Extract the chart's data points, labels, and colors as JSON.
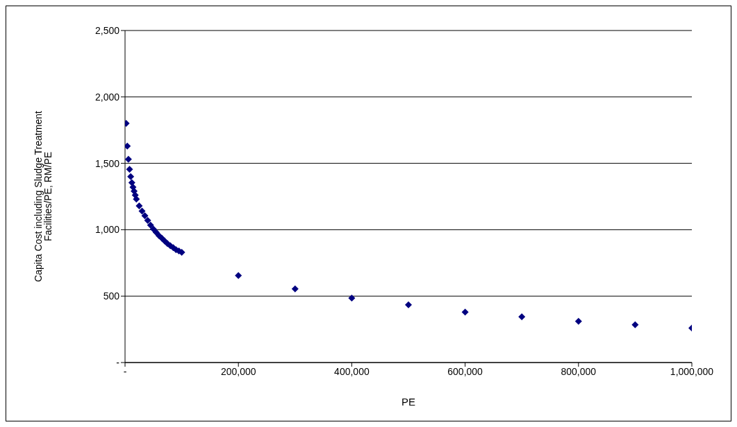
{
  "chart_data": {
    "type": "scatter",
    "xlabel": "PE",
    "ylabel": "Capita Cost including Sludge Treatment Facilities/PE, RM/PE",
    "marker": "diamond",
    "grid": "y",
    "legend": false,
    "xlim": [
      0,
      1000000
    ],
    "xticks": [
      {
        "value": 0,
        "label": "-"
      },
      {
        "value": 200000,
        "label": "200,000"
      },
      {
        "value": 400000,
        "label": "400,000"
      },
      {
        "value": 600000,
        "label": "600,000"
      },
      {
        "value": 800000,
        "label": "800,000"
      },
      {
        "value": 1000000,
        "label": "1,000,000"
      }
    ],
    "ylim": [
      0,
      2500
    ],
    "yticks": [
      {
        "value": 0,
        "label": "-"
      },
      500,
      {
        "value": 1000,
        "label": "1,000"
      },
      {
        "value": 1500,
        "label": "1,500"
      },
      {
        "value": 2000,
        "label": "2,000"
      },
      {
        "value": 2500,
        "label": "2,500"
      }
    ],
    "series": [
      {
        "color": "#000080",
        "x": [
          2000,
          4000,
          6000,
          8000,
          10000,
          12000,
          14000,
          16000,
          18000,
          20000,
          25000,
          30000,
          35000,
          40000,
          45000,
          50000,
          55000,
          60000,
          65000,
          70000,
          75000,
          80000,
          85000,
          90000,
          95000,
          100000,
          200000,
          300000,
          400000,
          500000,
          600000,
          700000,
          800000,
          900000,
          1000000
        ],
        "values": [
          1800,
          1630,
          1530,
          1455,
          1400,
          1355,
          1320,
          1290,
          1260,
          1230,
          1180,
          1140,
          1105,
          1070,
          1035,
          1005,
          980,
          955,
          935,
          915,
          895,
          880,
          865,
          850,
          840,
          830,
          655,
          555,
          485,
          435,
          380,
          345,
          310,
          285,
          260
        ]
      }
    ]
  }
}
